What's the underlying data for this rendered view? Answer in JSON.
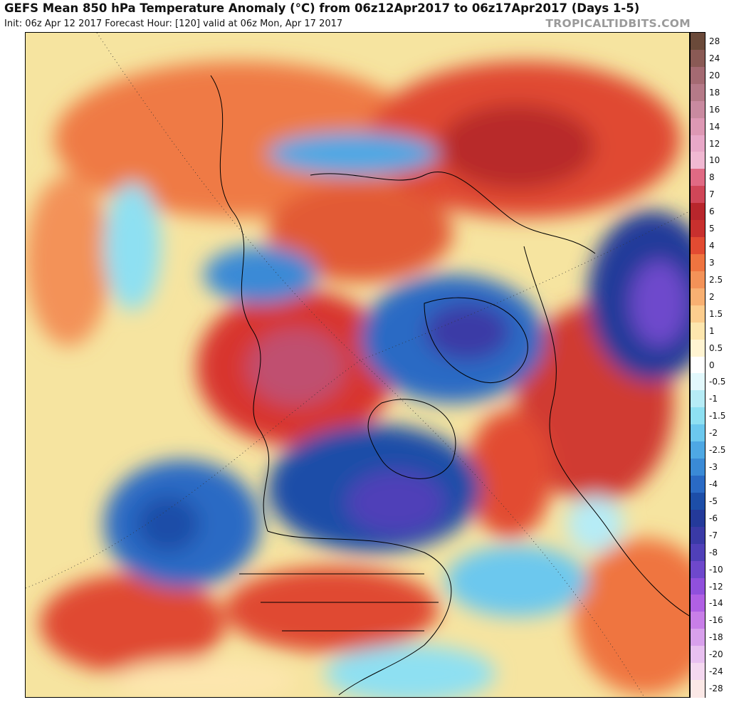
{
  "header": {
    "title": "GEFS Mean 850 hPa Temperature Anomaly (°C) from 06z12Apr2017 to 06z17Apr2017 (Days 1-5)",
    "subtitle": "Init: 06z Apr 12 2017   Forecast Hour: [120]   valid at 06z Mon, Apr 17 2017",
    "brand": "TROPICALTIDBITS.COM"
  },
  "colorbar": {
    "labels": [
      "28",
      "24",
      "20",
      "18",
      "16",
      "14",
      "12",
      "10",
      "8",
      "7",
      "6",
      "5",
      "4",
      "3",
      "2.5",
      "2",
      "1.5",
      "1",
      "0.5",
      "0",
      "-0.5",
      "-1",
      "-1.5",
      "-2",
      "-2.5",
      "-3",
      "-4",
      "-5",
      "-6",
      "-7",
      "-8",
      "-10",
      "-12",
      "-14",
      "-16",
      "-18",
      "-20",
      "-24",
      "-28"
    ],
    "colors": [
      "#6b4a3a",
      "#8a5a55",
      "#a46a72",
      "#b57a88",
      "#c98aa0",
      "#dd98b4",
      "#e8a8c8",
      "#f0b8d2",
      "#e06a84",
      "#d04658",
      "#b8262c",
      "#c8302e",
      "#e24b32",
      "#ef7440",
      "#f39258",
      "#f8b072",
      "#fccd8e",
      "#fde6ae",
      "#fff4d2",
      "#ffffff",
      "#e2f8fc",
      "#b6ecf6",
      "#8ee0f2",
      "#6cc8ee",
      "#4ea8e4",
      "#3a8ad6",
      "#2a6ac4",
      "#1d4ea8",
      "#243a9a",
      "#3a3aa6",
      "#5040b8",
      "#6e48cc",
      "#9050dc",
      "#b060e4",
      "#c87ee8",
      "#d8a0ec",
      "#e8c0f0",
      "#f4d8f0",
      "#fbe8e6"
    ]
  }
}
